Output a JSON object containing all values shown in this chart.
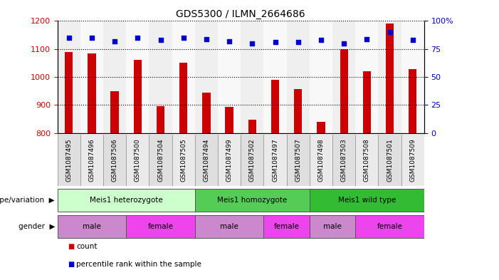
{
  "title": "GDS5300 / ILMN_2664686",
  "samples": [
    "GSM1087495",
    "GSM1087496",
    "GSM1087506",
    "GSM1087500",
    "GSM1087504",
    "GSM1087505",
    "GSM1087494",
    "GSM1087499",
    "GSM1087502",
    "GSM1087497",
    "GSM1087507",
    "GSM1087498",
    "GSM1087503",
    "GSM1087508",
    "GSM1087501",
    "GSM1087509"
  ],
  "counts": [
    1090,
    1085,
    950,
    1060,
    895,
    1050,
    945,
    893,
    848,
    990,
    958,
    840,
    1100,
    1020,
    1190,
    1028
  ],
  "percentile_ranks": [
    85,
    85,
    82,
    85,
    83,
    85,
    84,
    82,
    80,
    81,
    81,
    83,
    80,
    84,
    90,
    83
  ],
  "bar_color": "#cc0000",
  "dot_color": "#0000cc",
  "ylim_left": [
    800,
    1200
  ],
  "ylim_right": [
    0,
    100
  ],
  "yticks_left": [
    800,
    900,
    1000,
    1100,
    1200
  ],
  "yticks_right": [
    0,
    25,
    50,
    75,
    100
  ],
  "grid_linestyle": "dotted",
  "grid_color": "black",
  "grid_linewidth": 0.8,
  "bar_width": 0.35,
  "groups": [
    {
      "label": "Meis1 heterozygote",
      "start": 0,
      "end": 5,
      "color": "#ccffcc"
    },
    {
      "label": "Meis1 homozygote",
      "start": 6,
      "end": 10,
      "color": "#55cc55"
    },
    {
      "label": "Meis1 wild type",
      "start": 11,
      "end": 15,
      "color": "#33bb33"
    }
  ],
  "genders": [
    {
      "label": "male",
      "start": 0,
      "end": 2,
      "color": "#cc88cc"
    },
    {
      "label": "female",
      "start": 3,
      "end": 5,
      "color": "#ee44ee"
    },
    {
      "label": "male",
      "start": 6,
      "end": 8,
      "color": "#cc88cc"
    },
    {
      "label": "female",
      "start": 9,
      "end": 10,
      "color": "#ee44ee"
    },
    {
      "label": "male",
      "start": 11,
      "end": 12,
      "color": "#cc88cc"
    },
    {
      "label": "female",
      "start": 13,
      "end": 15,
      "color": "#ee44ee"
    }
  ],
  "legend_count_label": "count",
  "legend_pct_label": "percentile rank within the sample",
  "xlabel_genotype": "genotype/variation",
  "xlabel_gender": "gender",
  "col_bg_odd": "#d8d8d8",
  "col_bg_even": "#eeeeee",
  "label_row_bg": "#c8c8c8"
}
